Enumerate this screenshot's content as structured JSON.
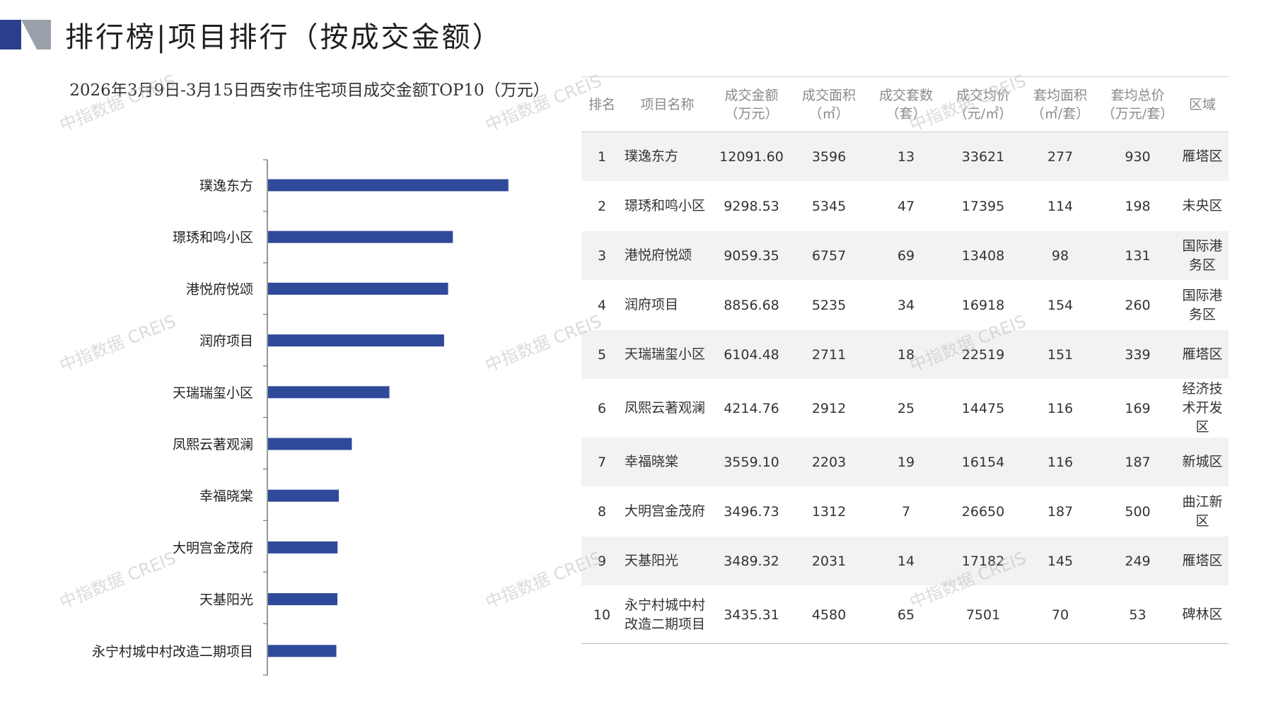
{
  "header": {
    "title": "排行榜|项目排行（按成交金额）"
  },
  "chart_data": {
    "type": "bar",
    "orientation": "horizontal",
    "title": "2026年3月9日-3月15日西安市住宅项目成交金额TOP10（万元）",
    "categories": [
      "璞逸东方",
      "璟琇和鸣小区",
      "港悦府悦颂",
      "润府项目",
      "天瑞瑞玺小区",
      "凤熙云著观澜",
      "幸福晓棠",
      "大明宫金茂府",
      "天基阳光",
      "永宁村城中村改造二期项目"
    ],
    "values": [
      12091.6,
      9298.53,
      9059.35,
      8856.68,
      6104.48,
      4214.76,
      3559.1,
      3496.73,
      3489.32,
      3435.31
    ],
    "xlim": [
      0,
      12100
    ],
    "grid": false,
    "bar_color": "#2f4a9a"
  },
  "table": {
    "headers": [
      [
        "排名"
      ],
      [
        "项目名称"
      ],
      [
        "成交金额",
        "（万元）"
      ],
      [
        "成交面积",
        "（㎡）"
      ],
      [
        "成交套数",
        "（套）"
      ],
      [
        "成交均价",
        "（元/㎡）"
      ],
      [
        "套均面积",
        "（㎡/套）"
      ],
      [
        "套均总价",
        "（万元/套）"
      ],
      [
        "区域"
      ]
    ],
    "rows": [
      {
        "rank": "1",
        "name": "璞逸东方",
        "amount": "12091.60",
        "area": "3596",
        "units": "13",
        "price": "33621",
        "avg_area": "277",
        "avg_total": "930",
        "district": "雁塔区"
      },
      {
        "rank": "2",
        "name": "璟琇和鸣小区",
        "amount": "9298.53",
        "area": "5345",
        "units": "47",
        "price": "17395",
        "avg_area": "114",
        "avg_total": "198",
        "district": "未央区"
      },
      {
        "rank": "3",
        "name": "港悦府悦颂",
        "amount": "9059.35",
        "area": "6757",
        "units": "69",
        "price": "13408",
        "avg_area": "98",
        "avg_total": "131",
        "district": "国际港务区"
      },
      {
        "rank": "4",
        "name": "润府项目",
        "amount": "8856.68",
        "area": "5235",
        "units": "34",
        "price": "16918",
        "avg_area": "154",
        "avg_total": "260",
        "district": "国际港务区"
      },
      {
        "rank": "5",
        "name": "天瑞瑞玺小区",
        "amount": "6104.48",
        "area": "2711",
        "units": "18",
        "price": "22519",
        "avg_area": "151",
        "avg_total": "339",
        "district": "雁塔区"
      },
      {
        "rank": "6",
        "name": "凤熙云著观澜",
        "amount": "4214.76",
        "area": "2912",
        "units": "25",
        "price": "14475",
        "avg_area": "116",
        "avg_total": "169",
        "district": "经济技术开发区"
      },
      {
        "rank": "7",
        "name": "幸福晓棠",
        "amount": "3559.10",
        "area": "2203",
        "units": "19",
        "price": "16154",
        "avg_area": "116",
        "avg_total": "187",
        "district": "新城区"
      },
      {
        "rank": "8",
        "name": "大明宫金茂府",
        "amount": "3496.73",
        "area": "1312",
        "units": "7",
        "price": "26650",
        "avg_area": "187",
        "avg_total": "500",
        "district": "曲江新区"
      },
      {
        "rank": "9",
        "name": "天基阳光",
        "amount": "3489.32",
        "area": "2031",
        "units": "14",
        "price": "17182",
        "avg_area": "145",
        "avg_total": "249",
        "district": "雁塔区"
      },
      {
        "rank": "10",
        "name": "永宁村城中村改造二期项目",
        "amount": "3435.31",
        "area": "4580",
        "units": "65",
        "price": "7501",
        "avg_area": "70",
        "avg_total": "53",
        "district": "碑林区"
      }
    ]
  },
  "watermark": "中指数据 CREIS",
  "colors": {
    "accent": "#2f4a9a",
    "logo_dark": "#2b3f8c",
    "logo_grey": "#9aa0aa"
  }
}
